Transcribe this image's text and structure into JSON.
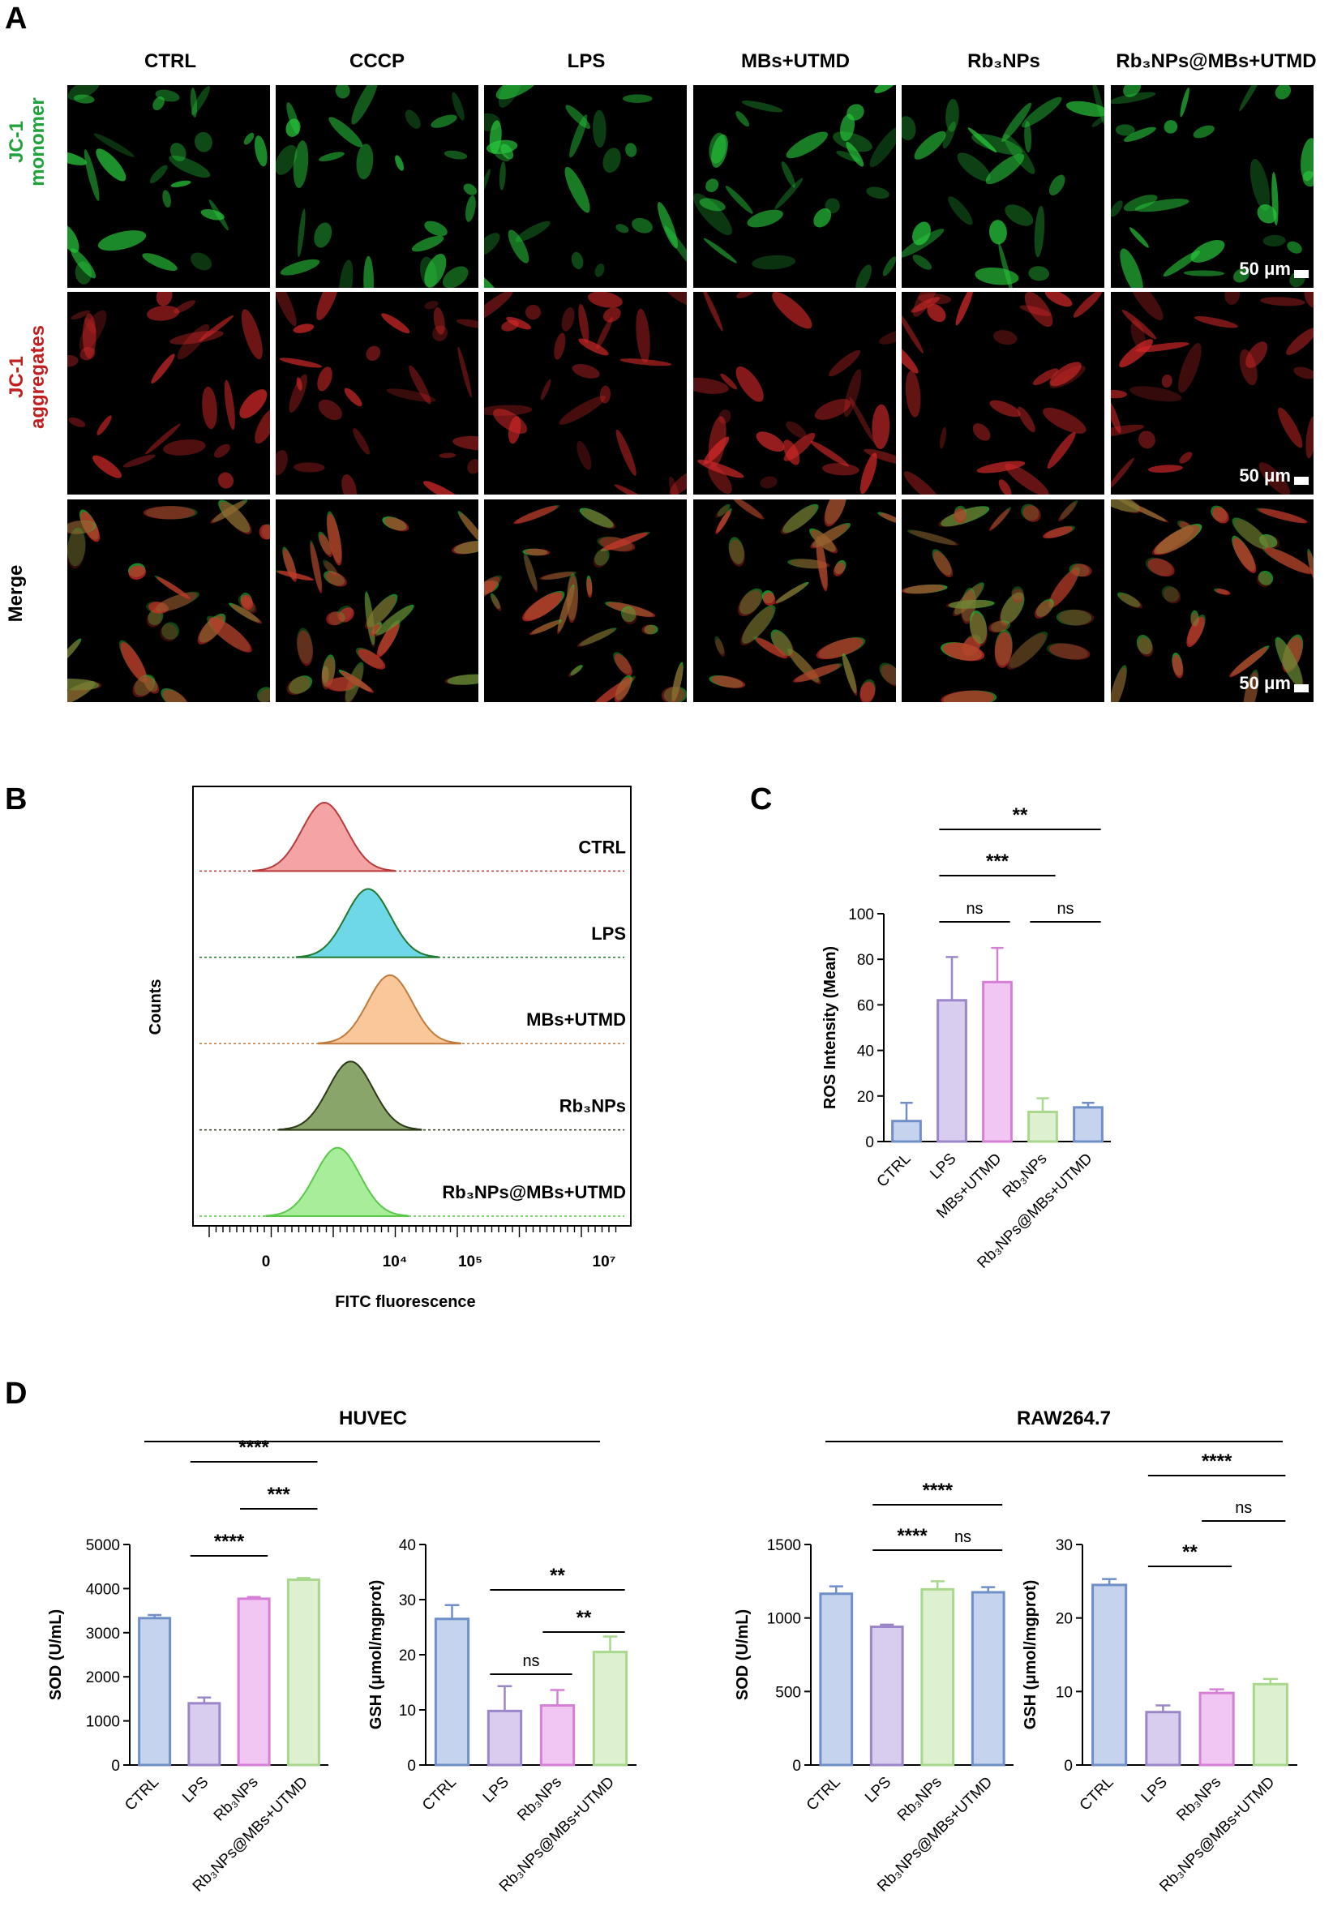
{
  "panels": {
    "a": "A",
    "b": "B",
    "c": "C",
    "d": "D"
  },
  "panelA": {
    "columns": [
      "CTRL",
      "CCCP",
      "LPS",
      "MBs+UTMD",
      "Rb₃NPs",
      "Rb₃NPs@MBs+UTMD"
    ],
    "rows": [
      {
        "label_line1": "JC-1",
        "label_line2": "monomer",
        "color": "#1fa23a",
        "channel": "green"
      },
      {
        "label_line1": "JC-1",
        "label_line2": "aggregates",
        "color": "#c21f1f",
        "channel": "red"
      },
      {
        "label_line1": "Merge",
        "label_line2": "",
        "color": "#000000",
        "channel": "merge"
      }
    ],
    "scale_bar": "50 μm"
  },
  "panelB": {
    "ylabel": "Counts",
    "xlabel": "FITC fluorescence",
    "xticks": [
      "0",
      "10⁴",
      "10⁵",
      "10⁷"
    ],
    "samples": [
      {
        "name": "CTRL",
        "color": "#f4a4a4",
        "line": "#b83a3a",
        "peak": 0.3
      },
      {
        "name": "LPS",
        "color": "#6fd8e8",
        "line": "#1f7a2e",
        "peak": 0.4
      },
      {
        "name": "MBs+UTMD",
        "color": "#f9c79a",
        "line": "#c07a3c",
        "peak": 0.45
      },
      {
        "name": "Rb₃NPs",
        "color": "#8aa56a",
        "line": "#2c3a18",
        "peak": 0.36
      },
      {
        "name": "Rb₃NPs@MBs+UTMD",
        "color": "#a8ee9a",
        "line": "#5ac94a",
        "peak": 0.33
      }
    ]
  },
  "chart_data": [
    {
      "type": "bar",
      "panel": "C",
      "ylabel": "ROS Intensity (Mean)",
      "ylim": [
        0,
        100
      ],
      "yticks": [
        0,
        20,
        40,
        60,
        80,
        100
      ],
      "categories": [
        "CTRL",
        "LPS",
        "MBs+UTMD",
        "Rb₃NPs",
        "Rb₃NPs@MBs+UTMD"
      ],
      "values": [
        9,
        62,
        70,
        13,
        15
      ],
      "errors": [
        8,
        19,
        15,
        6,
        2
      ],
      "colors": [
        "#6f8fc9",
        "#9a86c9",
        "#d67fd6",
        "#a8d88c",
        "#6f8fc9"
      ],
      "fills": [
        "#c6d3ee",
        "#d9cdef",
        "#f2c6f2",
        "#ddf0cf",
        "#c6d3ee"
      ],
      "significance": [
        {
          "from": 1,
          "to": 2,
          "label": "ns",
          "level": 0
        },
        {
          "from": 3,
          "to": 4,
          "label": "ns",
          "level": 0
        },
        {
          "from": 1,
          "to": 3,
          "label": "***",
          "level": 1
        },
        {
          "from": 1,
          "to": 4,
          "label": "**",
          "level": 2
        }
      ]
    },
    {
      "type": "bar",
      "panel": "D",
      "group": "HUVEC",
      "ylabel": "SOD (U/mL)",
      "ylim": [
        0,
        5000
      ],
      "yticks": [
        0,
        1000,
        2000,
        3000,
        4000,
        5000
      ],
      "categories": [
        "CTRL",
        "LPS",
        "Rb₃NPs",
        "Rb₃NPs@MBs+UTMD"
      ],
      "values": [
        3330,
        1400,
        3770,
        4200
      ],
      "errors": [
        70,
        130,
        40,
        40
      ],
      "colors": [
        "#6f8fc9",
        "#9a86c9",
        "#d67fd6",
        "#a8d88c"
      ],
      "fills": [
        "#c6d3ee",
        "#d9cdef",
        "#f2c6f2",
        "#ddf0cf"
      ],
      "significance": [
        {
          "from": 1,
          "to": 2,
          "label": "****",
          "level": 0
        },
        {
          "from": 2,
          "to": 3,
          "label": "***",
          "level": 1
        },
        {
          "from": 1,
          "to": 3,
          "label": "****",
          "level": 2
        }
      ]
    },
    {
      "type": "bar",
      "panel": "D",
      "group": "HUVEC",
      "ylabel": "GSH (μmol/mgprot)",
      "ylim": [
        0,
        40
      ],
      "yticks": [
        0,
        10,
        20,
        30,
        40
      ],
      "categories": [
        "CTRL",
        "LPS",
        "Rb₃NPs",
        "Rb₃NPs@MBs+UTMD"
      ],
      "values": [
        26.5,
        9.8,
        10.8,
        20.5
      ],
      "errors": [
        2.5,
        4.5,
        2.8,
        2.8
      ],
      "colors": [
        "#6f8fc9",
        "#9a86c9",
        "#d67fd6",
        "#a8d88c"
      ],
      "fills": [
        "#c6d3ee",
        "#d9cdef",
        "#f2c6f2",
        "#ddf0cf"
      ],
      "significance": [
        {
          "from": 1,
          "to": 2,
          "label": "ns",
          "level": 0
        },
        {
          "from": 2,
          "to": 3,
          "label": "**",
          "level": 1
        },
        {
          "from": 1,
          "to": 3,
          "label": "**",
          "level": 2
        }
      ]
    },
    {
      "type": "bar",
      "panel": "D",
      "group": "RAW264.7",
      "ylabel": "SOD (U/mL)",
      "ylim": [
        0,
        1500
      ],
      "yticks": [
        0,
        500,
        1000,
        1500
      ],
      "categories": [
        "CTRL",
        "LPS",
        "Rb₃NPs",
        "Rb₃NPs@MBs+UTMD"
      ],
      "values": [
        1165,
        940,
        1195,
        1175
      ],
      "errors": [
        50,
        15,
        55,
        35
      ],
      "colors": [
        "#6f8fc9",
        "#9a86c9",
        "#a8d88c",
        "#6f8fc9"
      ],
      "fills": [
        "#c6d3ee",
        "#d9cdef",
        "#ddf0cf",
        "#c6d3ee"
      ],
      "significance": [
        {
          "from": 1,
          "to": 2,
          "label": "****",
          "level": 0
        },
        {
          "from": 2,
          "to": 3,
          "label": "ns",
          "level": 0
        },
        {
          "from": 1,
          "to": 3,
          "label": "****",
          "level": 1
        }
      ]
    },
    {
      "type": "bar",
      "panel": "D",
      "group": "RAW264.7",
      "ylabel": "GSH (μmol/mgprot)",
      "ylim": [
        0,
        30
      ],
      "yticks": [
        0,
        10,
        20,
        30
      ],
      "categories": [
        "CTRL",
        "LPS",
        "Rb₃NPs",
        "Rb₃NPs@MBs+UTMD"
      ],
      "values": [
        24.5,
        7.2,
        9.8,
        11.0
      ],
      "errors": [
        0.8,
        0.9,
        0.5,
        0.7
      ],
      "colors": [
        "#6f8fc9",
        "#9a86c9",
        "#d67fd6",
        "#a8d88c"
      ],
      "fills": [
        "#c6d3ee",
        "#d9cdef",
        "#f2c6f2",
        "#ddf0cf"
      ],
      "significance": [
        {
          "from": 1,
          "to": 2,
          "label": "**",
          "level": 0
        },
        {
          "from": 2,
          "to": 3,
          "label": "ns",
          "level": 1
        },
        {
          "from": 1,
          "to": 3,
          "label": "****",
          "level": 2
        }
      ]
    }
  ],
  "groupsD": [
    "HUVEC",
    "RAW264.7"
  ]
}
